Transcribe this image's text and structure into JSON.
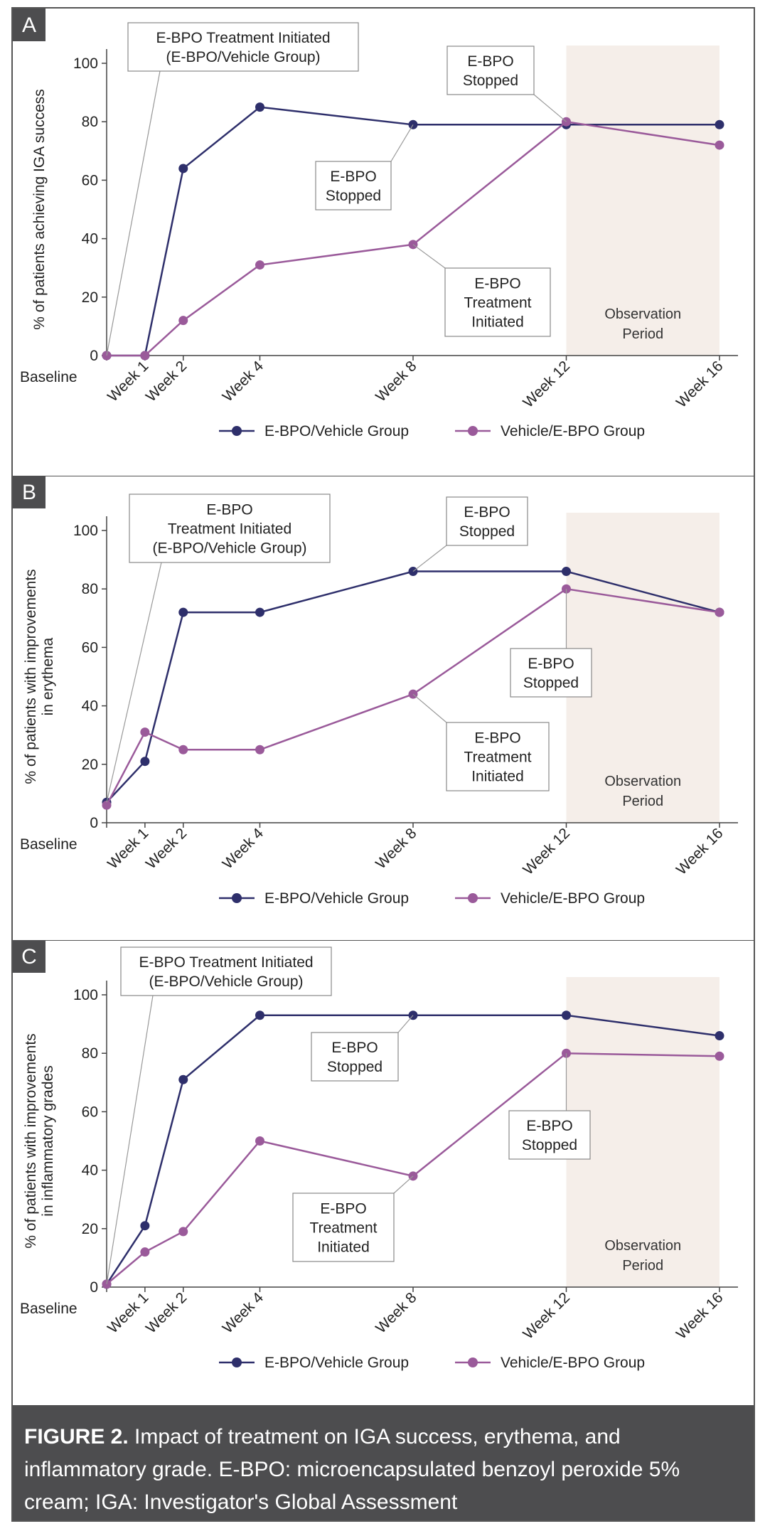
{
  "chart_data": [
    {
      "type": "line",
      "panel_label": "A",
      "ylabel": "% of patients achieving IGA success",
      "ylim": [
        0,
        100
      ],
      "yticks": [
        "0",
        "20",
        "40",
        "60",
        "80",
        "100"
      ],
      "x_values": [
        0,
        1,
        2,
        4,
        8,
        12,
        16
      ],
      "x_labels": [
        "Baseline",
        "Week 1",
        "Week 2",
        "Week 4",
        "Week 8",
        "Week 12",
        "Week 16"
      ],
      "colors": {
        "evehicle": "#2e2f6b",
        "vehiclee": "#9a5a9a"
      },
      "series": [
        {
          "name": "E-BPO/Vehicle Group",
          "key": "evehicle",
          "values": [
            0,
            0,
            64,
            85,
            79,
            79,
            79
          ]
        },
        {
          "name": "Vehicle/E-BPO Group",
          "key": "vehiclee",
          "values": [
            0,
            0,
            12,
            31,
            38,
            80,
            72
          ]
        }
      ],
      "observation_label": [
        "Observation",
        "Period"
      ],
      "annotations": [
        {
          "lines": [
            "E-BPO Treatment Initiated",
            "(E-BPO/Vehicle Group)"
          ],
          "target": {
            "series": "evehicle",
            "x": 0
          }
        },
        {
          "lines": [
            "E-BPO",
            "Stopped"
          ],
          "target": {
            "series": "vehiclee",
            "x": 12
          }
        },
        {
          "lines": [
            "E-BPO",
            "Stopped"
          ],
          "target": {
            "series": "evehicle",
            "x": 8
          }
        },
        {
          "lines": [
            "E-BPO",
            "Treatment",
            "Initiated"
          ],
          "target": {
            "series": "vehiclee",
            "x": 8
          }
        }
      ]
    },
    {
      "type": "line",
      "panel_label": "B",
      "ylabel": [
        "% of patients with improvements",
        "in erythema"
      ],
      "ylim": [
        0,
        100
      ],
      "yticks": [
        "0",
        "20",
        "40",
        "60",
        "80",
        "100"
      ],
      "x_values": [
        0,
        1,
        2,
        4,
        8,
        12,
        16
      ],
      "x_labels": [
        "Baseline",
        "Week 1",
        "Week 2",
        "Week 4",
        "Week 8",
        "Week 12",
        "Week 16"
      ],
      "colors": {
        "evehicle": "#2e2f6b",
        "vehiclee": "#9a5a9a"
      },
      "series": [
        {
          "name": "E-BPO/Vehicle Group",
          "key": "evehicle",
          "values": [
            7,
            21,
            72,
            72,
            86,
            86,
            72
          ]
        },
        {
          "name": "Vehicle/E-BPO Group",
          "key": "vehiclee",
          "values": [
            6,
            31,
            25,
            25,
            44,
            80,
            72
          ]
        }
      ],
      "observation_label": [
        "Observation",
        "Period"
      ],
      "annotations": [
        {
          "lines": [
            "E-BPO",
            "Treatment Initiated",
            "(E-BPO/Vehicle Group)"
          ],
          "target": {
            "series": "evehicle",
            "x": 0
          }
        },
        {
          "lines": [
            "E-BPO",
            "Stopped"
          ],
          "target": {
            "series": "evehicle",
            "x": 8
          }
        },
        {
          "lines": [
            "E-BPO",
            "Stopped"
          ],
          "target": {
            "series": "vehiclee",
            "x": 12
          }
        },
        {
          "lines": [
            "E-BPO",
            "Treatment",
            "Initiated"
          ],
          "target": {
            "series": "vehiclee",
            "x": 8
          }
        }
      ]
    },
    {
      "type": "line",
      "panel_label": "C",
      "ylabel": [
        "% of patients with improvements",
        "in inflammatory grades"
      ],
      "ylim": [
        0,
        100
      ],
      "yticks": [
        "0",
        "20",
        "40",
        "60",
        "80",
        "100"
      ],
      "x_values": [
        0,
        1,
        2,
        4,
        8,
        12,
        16
      ],
      "x_labels": [
        "Baseline",
        "Week 1",
        "Week 2",
        "Week 4",
        "Week 8",
        "Week 12",
        "Week 16"
      ],
      "colors": {
        "evehicle": "#2e2f6b",
        "vehiclee": "#9a5a9a"
      },
      "series": [
        {
          "name": "E-BPO/Vehicle Group",
          "key": "evehicle",
          "values": [
            1,
            21,
            71,
            93,
            93,
            93,
            86
          ]
        },
        {
          "name": "Vehicle/E-BPO Group",
          "key": "vehiclee",
          "values": [
            1,
            12,
            19,
            50,
            38,
            80,
            79
          ]
        }
      ],
      "observation_label": [
        "Observation",
        "Period"
      ],
      "annotations": [
        {
          "lines": [
            "E-BPO Treatment Initiated",
            "(E-BPO/Vehicle Group)"
          ],
          "target": {
            "series": "evehicle",
            "x": 0
          }
        },
        {
          "lines": [
            "E-BPO",
            "Stopped"
          ],
          "target": {
            "series": "evehicle",
            "x": 8
          }
        },
        {
          "lines": [
            "E-BPO",
            "Stopped"
          ],
          "target": {
            "series": "vehiclee",
            "x": 12
          }
        },
        {
          "lines": [
            "E-BPO",
            "Treatment",
            "Initiated"
          ],
          "target": {
            "series": "vehiclee",
            "x": 8
          }
        }
      ]
    }
  ],
  "caption": {
    "label": "FIGURE 2.",
    "text": " Impact of treatment on IGA success, erythema, and inflammatory grade. E-BPO: microencapsulated benzoyl peroxide 5% cream; IGA: Investigator's Global Assessment"
  }
}
